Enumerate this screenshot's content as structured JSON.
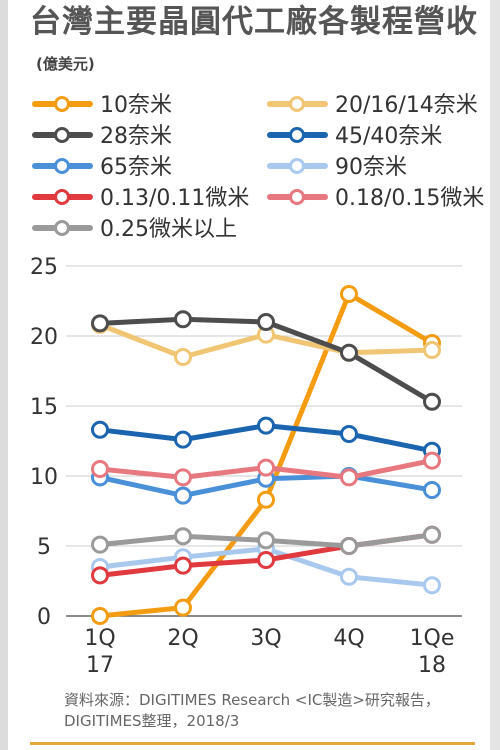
{
  "title": {
    "main": "台灣主要晶圓代工廠各製程營收",
    "unit": "(億美元)"
  },
  "source": "資料來源：DIGITIMES Research <IC製造>研究報告，DIGITIMES整理，2018/3",
  "chart_data": {
    "type": "line",
    "categories": [
      "1Q 17",
      "2Q",
      "3Q",
      "4Q",
      "1Qe 18"
    ],
    "category_lines": [
      [
        "1Q",
        "17"
      ],
      [
        "2Q"
      ],
      [
        "3Q"
      ],
      [
        "4Q"
      ],
      [
        "1Qe",
        "18"
      ]
    ],
    "ylim": [
      0,
      25
    ],
    "yticks": [
      0,
      5,
      10,
      15,
      20,
      25
    ],
    "grid": true,
    "legend_position": "top",
    "series": [
      {
        "name": "10奈米",
        "color": "#f39c12",
        "values": [
          0,
          0.6,
          8.3,
          23,
          19.5
        ]
      },
      {
        "name": "20/16/14奈米",
        "color": "#f0c674",
        "values": [
          20.8,
          18.5,
          20.1,
          18.8,
          19.0
        ]
      },
      {
        "name": "28奈米",
        "color": "#4d4d4d",
        "values": [
          20.9,
          21.2,
          21.0,
          18.8,
          15.3
        ]
      },
      {
        "name": "45/40奈米",
        "color": "#1b64b0",
        "values": [
          13.3,
          12.6,
          13.6,
          13.0,
          11.8
        ]
      },
      {
        "name": "65奈米",
        "color": "#4a90d9",
        "values": [
          9.9,
          8.6,
          9.8,
          10.0,
          9.0
        ]
      },
      {
        "name": "90奈米",
        "color": "#a9c8ee",
        "values": [
          3.5,
          4.2,
          4.8,
          2.8,
          2.2
        ]
      },
      {
        "name": "0.13/0.11微米",
        "color": "#e0393e",
        "values": [
          2.9,
          3.6,
          4.0,
          5.0,
          5.8
        ]
      },
      {
        "name": "0.18/0.15微米",
        "color": "#e8787f",
        "values": [
          10.5,
          9.9,
          10.6,
          9.9,
          11.1
        ]
      },
      {
        "name": "0.25微米以上",
        "color": "#9a9a9a",
        "values": [
          5.1,
          5.7,
          5.4,
          5.0,
          5.8
        ]
      }
    ]
  }
}
